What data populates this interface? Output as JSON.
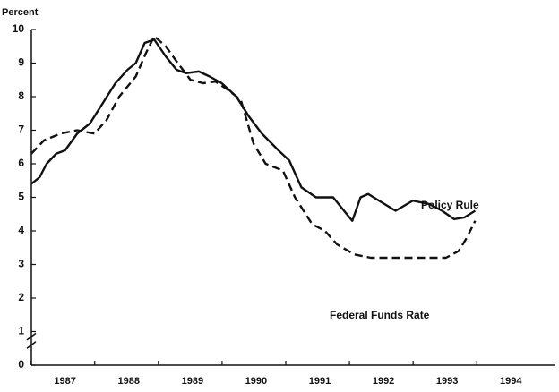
{
  "chart_data": {
    "type": "line",
    "y_label": "Percent",
    "ylim": [
      0,
      10
    ],
    "yticks": [
      0,
      1,
      2,
      3,
      4,
      5,
      6,
      7,
      8,
      9,
      10
    ],
    "xlim": [
      1986.47,
      1994.7
    ],
    "xticks": [
      1987,
      1988,
      1989,
      1990,
      1991,
      1992,
      1993,
      1994
    ],
    "series": [
      {
        "name": "Policy Rule",
        "color": "#111111",
        "dash": false,
        "x": [
          1986.47,
          1986.6,
          1986.71,
          1986.86,
          1987.0,
          1987.19,
          1987.39,
          1987.59,
          1987.79,
          1987.98,
          1988.11,
          1988.25,
          1988.4,
          1988.58,
          1988.75,
          1988.9,
          1989.1,
          1989.27,
          1989.46,
          1989.69,
          1989.89,
          1990.09,
          1990.35,
          1990.52,
          1990.71,
          1990.94,
          1991.21,
          1991.38,
          1991.51,
          1991.64,
          1991.76,
          1991.93,
          1992.19,
          1992.46,
          1992.72,
          1992.92,
          1993.11,
          1993.27,
          1993.44
        ],
        "values": [
          5.4,
          5.6,
          6.0,
          6.3,
          6.4,
          6.9,
          7.2,
          7.8,
          8.4,
          8.8,
          9.0,
          9.6,
          9.7,
          9.2,
          8.8,
          8.7,
          8.75,
          8.6,
          8.4,
          8.0,
          7.4,
          6.9,
          6.4,
          6.1,
          5.3,
          5.0,
          5.0,
          4.6,
          4.3,
          5.0,
          5.1,
          4.9,
          4.6,
          4.9,
          4.8,
          4.6,
          4.35,
          4.4,
          4.6
        ]
      },
      {
        "name": "Federal Funds Rate",
        "color": "#111111",
        "dash": true,
        "x": [
          1986.47,
          1986.67,
          1986.93,
          1987.19,
          1987.46,
          1987.65,
          1987.85,
          1988.11,
          1988.27,
          1988.4,
          1988.58,
          1988.77,
          1988.97,
          1989.17,
          1989.36,
          1989.56,
          1989.76,
          1989.96,
          1990.15,
          1990.42,
          1990.61,
          1990.88,
          1991.08,
          1991.27,
          1991.54,
          1991.8,
          1992.19,
          1992.59,
          1992.98,
          1993.18,
          1993.31,
          1993.44
        ],
        "values": [
          6.3,
          6.7,
          6.9,
          7.0,
          6.9,
          7.3,
          8.0,
          8.6,
          9.3,
          9.8,
          9.5,
          9.0,
          8.5,
          8.4,
          8.45,
          8.2,
          7.9,
          6.6,
          6.0,
          5.8,
          5.0,
          4.2,
          4.0,
          3.6,
          3.3,
          3.2,
          3.2,
          3.2,
          3.2,
          3.4,
          3.8,
          4.3
        ]
      }
    ]
  }
}
